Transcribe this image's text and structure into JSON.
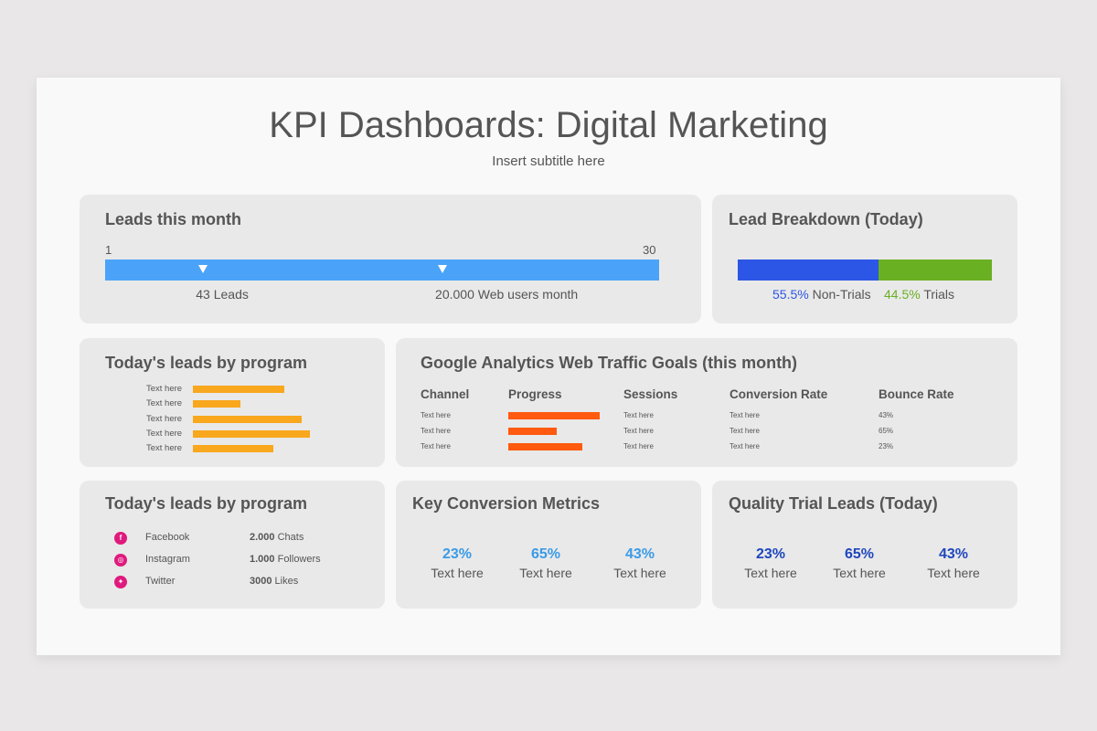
{
  "title": "KPI Dashboards: Digital Marketing",
  "subtitle": "Insert subtitle here",
  "colors": {
    "lead_bar": "#4aa3f9",
    "non_trials": "#2c56e6",
    "trials": "#6ab023",
    "program_bar": "#f9a71d",
    "progress_bar": "#ff5a0f",
    "social_icon": "#e0197d",
    "metric_light_blue": "#3a9be8",
    "metric_dark_blue": "#1f47bd"
  },
  "leads_month": {
    "title": "Leads this month",
    "scale_min": "1",
    "scale_max": "30",
    "markers": [
      {
        "label": "43 Leads",
        "position": 0.177
      },
      {
        "label": "20.000 Web users month",
        "position": 0.609
      }
    ]
  },
  "lead_breakdown": {
    "title": "Lead Breakdown (Today)",
    "segments": [
      {
        "pct": "55.5%",
        "label": "Non-Trials",
        "value": 55.5
      },
      {
        "pct": "44.5%",
        "label": "Trials",
        "value": 44.5
      }
    ]
  },
  "program_bars": {
    "title": "Today's leads by program",
    "items": [
      {
        "label": "Text here",
        "value": 0.78
      },
      {
        "label": "Text here",
        "value": 0.41
      },
      {
        "label": "Text here",
        "value": 0.93
      },
      {
        "label": "Text here",
        "value": 1.0
      },
      {
        "label": "Text here",
        "value": 0.69
      }
    ]
  },
  "analytics": {
    "title": "Google Analytics Web Traffic Goals (this month)",
    "headers": [
      "Channel",
      "Progress",
      "Sessions",
      "Conversion Rate",
      "Bounce Rate"
    ],
    "rows": [
      {
        "channel": "Text here",
        "progress": 1.0,
        "sessions": "Text here",
        "conversion": "Text here",
        "bounce": "43%"
      },
      {
        "channel": "Text here",
        "progress": 0.53,
        "sessions": "Text here",
        "conversion": "Text here",
        "bounce": "65%"
      },
      {
        "channel": "Text here",
        "progress": 0.81,
        "sessions": "Text here",
        "conversion": "Text here",
        "bounce": "23%"
      }
    ]
  },
  "social": {
    "title": "Today's leads by program",
    "items": [
      {
        "icon": "facebook-icon",
        "glyph": "f",
        "name": "Facebook",
        "value": "2.000",
        "unit": "Chats"
      },
      {
        "icon": "instagram-icon",
        "glyph": "◎",
        "name": "Instagram",
        "value": "1.000",
        "unit": "Followers"
      },
      {
        "icon": "twitter-icon",
        "glyph": "✦",
        "name": "Twitter",
        "value": "3000",
        "unit": "Likes"
      }
    ]
  },
  "conversion_metrics": {
    "title": "Key Conversion Metrics",
    "items": [
      {
        "pct": "23%",
        "label": "Text here"
      },
      {
        "pct": "65%",
        "label": "Text here"
      },
      {
        "pct": "43%",
        "label": "Text here"
      }
    ]
  },
  "quality_leads": {
    "title": "Quality Trial Leads (Today)",
    "items": [
      {
        "pct": "23%",
        "label": "Text here"
      },
      {
        "pct": "65%",
        "label": "Text here"
      },
      {
        "pct": "43%",
        "label": "Text here"
      }
    ]
  }
}
